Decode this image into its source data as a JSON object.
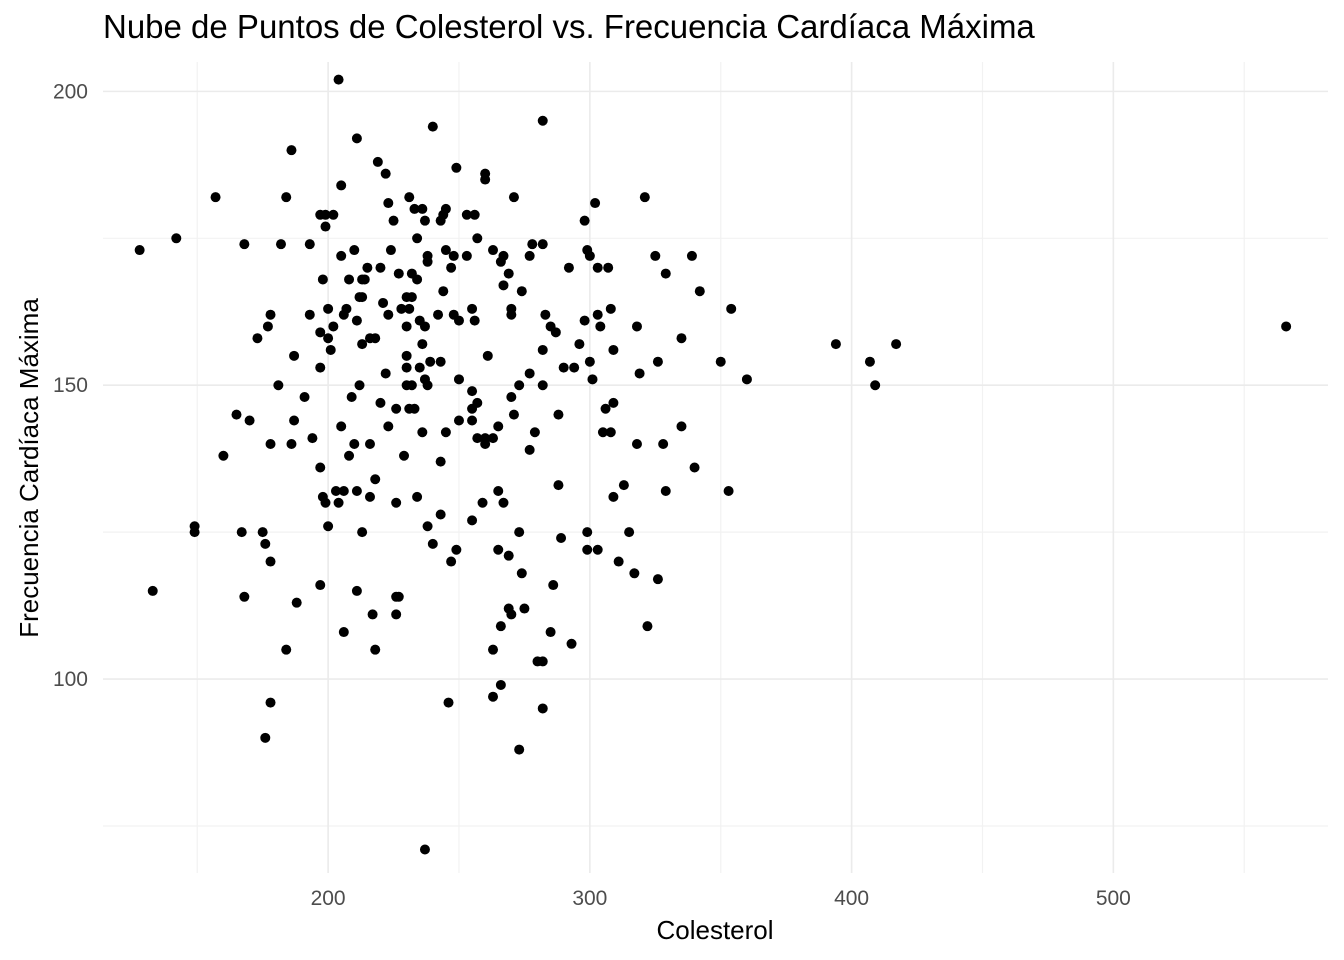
{
  "chart_data": {
    "type": "scatter",
    "title": "Nube de Puntos de Colesterol vs. Frecuencia Cardíaca Máxima",
    "xlabel": "Colesterol",
    "ylabel": "Frecuencia Cardíaca Máxima",
    "xlim": [
      114,
      582
    ],
    "ylim": [
      67,
      205
    ],
    "x_ticks": [
      200,
      300,
      400,
      500
    ],
    "y_ticks": [
      100,
      150,
      200
    ],
    "grid": true,
    "point_color": "#000000",
    "points": [
      [
        204,
        202
      ],
      [
        282,
        195
      ],
      [
        240,
        194
      ],
      [
        211,
        192
      ],
      [
        186,
        190
      ],
      [
        219,
        188
      ],
      [
        249,
        187
      ],
      [
        222,
        186
      ],
      [
        260,
        185
      ],
      [
        260,
        186
      ],
      [
        205,
        184
      ],
      [
        157,
        182
      ],
      [
        184,
        182
      ],
      [
        231,
        182
      ],
      [
        271,
        182
      ],
      [
        321,
        182
      ],
      [
        302,
        181
      ],
      [
        223,
        181
      ],
      [
        233,
        180
      ],
      [
        244,
        179
      ],
      [
        236,
        180
      ],
      [
        245,
        180
      ],
      [
        253,
        179
      ],
      [
        256,
        179
      ],
      [
        197,
        179
      ],
      [
        199,
        179
      ],
      [
        202,
        179
      ],
      [
        298,
        178
      ],
      [
        225,
        178
      ],
      [
        237,
        178
      ],
      [
        243,
        178
      ],
      [
        199,
        177
      ],
      [
        142,
        175
      ],
      [
        128,
        173
      ],
      [
        168,
        174
      ],
      [
        182,
        174
      ],
      [
        193,
        174
      ],
      [
        278,
        174
      ],
      [
        282,
        174
      ],
      [
        234,
        175
      ],
      [
        257,
        175
      ],
      [
        210,
        173
      ],
      [
        224,
        173
      ],
      [
        245,
        173
      ],
      [
        263,
        173
      ],
      [
        299,
        173
      ],
      [
        205,
        172
      ],
      [
        238,
        172
      ],
      [
        248,
        172
      ],
      [
        253,
        172
      ],
      [
        267,
        172
      ],
      [
        277,
        172
      ],
      [
        300,
        172
      ],
      [
        325,
        172
      ],
      [
        339,
        172
      ],
      [
        238,
        171
      ],
      [
        266,
        171
      ],
      [
        292,
        170
      ],
      [
        215,
        170
      ],
      [
        220,
        170
      ],
      [
        303,
        170
      ],
      [
        307,
        170
      ],
      [
        247,
        170
      ],
      [
        232,
        169
      ],
      [
        329,
        169
      ],
      [
        208,
        168
      ],
      [
        214,
        168
      ],
      [
        234,
        168
      ],
      [
        198,
        168
      ],
      [
        227,
        169
      ],
      [
        269,
        169
      ],
      [
        267,
        167
      ],
      [
        342,
        166
      ],
      [
        213,
        165
      ],
      [
        212,
        165
      ],
      [
        230,
        165
      ],
      [
        232,
        165
      ],
      [
        244,
        166
      ],
      [
        274,
        166
      ],
      [
        213,
        168
      ],
      [
        250,
        161
      ],
      [
        221,
        164
      ],
      [
        231,
        163
      ],
      [
        354,
        163
      ],
      [
        200,
        163
      ],
      [
        207,
        163
      ],
      [
        228,
        163
      ],
      [
        270,
        163
      ],
      [
        298,
        161
      ],
      [
        303,
        162
      ],
      [
        206,
        162
      ],
      [
        178,
        162
      ],
      [
        223,
        162
      ],
      [
        248,
        162
      ],
      [
        270,
        162
      ],
      [
        283,
        162
      ],
      [
        193,
        162
      ],
      [
        242,
        162
      ],
      [
        255,
        163
      ],
      [
        304,
        160
      ],
      [
        211,
        161
      ],
      [
        235,
        161
      ],
      [
        202,
        160
      ],
      [
        237,
        160
      ],
      [
        256,
        161
      ],
      [
        308,
        163
      ],
      [
        318,
        160
      ],
      [
        285,
        160
      ],
      [
        177,
        160
      ],
      [
        230,
        160
      ],
      [
        197,
        159
      ],
      [
        287,
        159
      ],
      [
        309,
        156
      ],
      [
        300,
        154
      ],
      [
        350,
        154
      ],
      [
        218,
        158
      ],
      [
        173,
        158
      ],
      [
        200,
        158
      ],
      [
        213,
        157
      ],
      [
        216,
        158
      ],
      [
        236,
        157
      ],
      [
        296,
        157
      ],
      [
        335,
        158
      ],
      [
        394,
        157
      ],
      [
        417,
        157
      ],
      [
        566,
        160
      ],
      [
        187,
        155
      ],
      [
        201,
        156
      ],
      [
        230,
        155
      ],
      [
        235,
        153
      ],
      [
        282,
        156
      ],
      [
        261,
        155
      ],
      [
        239,
        154
      ],
      [
        243,
        154
      ],
      [
        326,
        154
      ],
      [
        407,
        154
      ],
      [
        197,
        153
      ],
      [
        230,
        153
      ],
      [
        290,
        153
      ],
      [
        294,
        153
      ],
      [
        222,
        152
      ],
      [
        277,
        152
      ],
      [
        319,
        152
      ],
      [
        181,
        150
      ],
      [
        212,
        150
      ],
      [
        230,
        150
      ],
      [
        238,
        150
      ],
      [
        232,
        150
      ],
      [
        237,
        151
      ],
      [
        250,
        151
      ],
      [
        255,
        149
      ],
      [
        273,
        150
      ],
      [
        282,
        150
      ],
      [
        301,
        151
      ],
      [
        360,
        151
      ],
      [
        409,
        150
      ],
      [
        191,
        148
      ],
      [
        209,
        148
      ],
      [
        220,
        147
      ],
      [
        255,
        146
      ],
      [
        270,
        148
      ],
      [
        226,
        146
      ],
      [
        231,
        146
      ],
      [
        233,
        146
      ],
      [
        257,
        147
      ],
      [
        288,
        145
      ],
      [
        306,
        146
      ],
      [
        309,
        147
      ],
      [
        165,
        145
      ],
      [
        170,
        144
      ],
      [
        187,
        144
      ],
      [
        223,
        143
      ],
      [
        245,
        142
      ],
      [
        250,
        144
      ],
      [
        255,
        144
      ],
      [
        265,
        143
      ],
      [
        271,
        145
      ],
      [
        205,
        143
      ],
      [
        236,
        142
      ],
      [
        260,
        141
      ],
      [
        277,
        139
      ],
      [
        194,
        141
      ],
      [
        216,
        140
      ],
      [
        178,
        140
      ],
      [
        279,
        142
      ],
      [
        318,
        140
      ],
      [
        260,
        140
      ],
      [
        328,
        140
      ],
      [
        305,
        142
      ],
      [
        308,
        142
      ],
      [
        335,
        143
      ],
      [
        257,
        141
      ],
      [
        263,
        141
      ],
      [
        160,
        138
      ],
      [
        197,
        136
      ],
      [
        208,
        138
      ],
      [
        229,
        138
      ],
      [
        243,
        137
      ],
      [
        340,
        136
      ],
      [
        186,
        140
      ],
      [
        203,
        132
      ],
      [
        206,
        132
      ],
      [
        211,
        132
      ],
      [
        218,
        134
      ],
      [
        216,
        131
      ],
      [
        226,
        130
      ],
      [
        234,
        131
      ],
      [
        265,
        132
      ],
      [
        267,
        130
      ],
      [
        288,
        133
      ],
      [
        309,
        131
      ],
      [
        313,
        133
      ],
      [
        329,
        132
      ],
      [
        353,
        132
      ],
      [
        198,
        131
      ],
      [
        200,
        126
      ],
      [
        199,
        130
      ],
      [
        149,
        126
      ],
      [
        149,
        125
      ],
      [
        167,
        125
      ],
      [
        175,
        125
      ],
      [
        176,
        123
      ],
      [
        178,
        120
      ],
      [
        204,
        130
      ],
      [
        210,
        140
      ],
      [
        213,
        125
      ],
      [
        238,
        126
      ],
      [
        255,
        127
      ],
      [
        259,
        130
      ],
      [
        273,
        125
      ],
      [
        289,
        124
      ],
      [
        299,
        125
      ],
      [
        299,
        122
      ],
      [
        303,
        122
      ],
      [
        315,
        125
      ],
      [
        317,
        118
      ],
      [
        243,
        128
      ],
      [
        247,
        120
      ],
      [
        249,
        122
      ],
      [
        265,
        122
      ],
      [
        269,
        121
      ],
      [
        274,
        118
      ],
      [
        311,
        120
      ],
      [
        326,
        117
      ],
      [
        133,
        115
      ],
      [
        197,
        116
      ],
      [
        211,
        115
      ],
      [
        226,
        114
      ],
      [
        227,
        114
      ],
      [
        240,
        123
      ],
      [
        286,
        116
      ],
      [
        168,
        114
      ],
      [
        188,
        113
      ],
      [
        217,
        111
      ],
      [
        226,
        111
      ],
      [
        275,
        112
      ],
      [
        269,
        112
      ],
      [
        270,
        111
      ],
      [
        266,
        109
      ],
      [
        285,
        108
      ],
      [
        322,
        109
      ],
      [
        206,
        108
      ],
      [
        263,
        105
      ],
      [
        282,
        103
      ],
      [
        280,
        103
      ],
      [
        293,
        106
      ],
      [
        184,
        105
      ],
      [
        218,
        105
      ],
      [
        266,
        99
      ],
      [
        263,
        97
      ],
      [
        178,
        96
      ],
      [
        246,
        96
      ],
      [
        282,
        95
      ],
      [
        176,
        90
      ],
      [
        273,
        88
      ],
      [
        237,
        71
      ]
    ]
  }
}
